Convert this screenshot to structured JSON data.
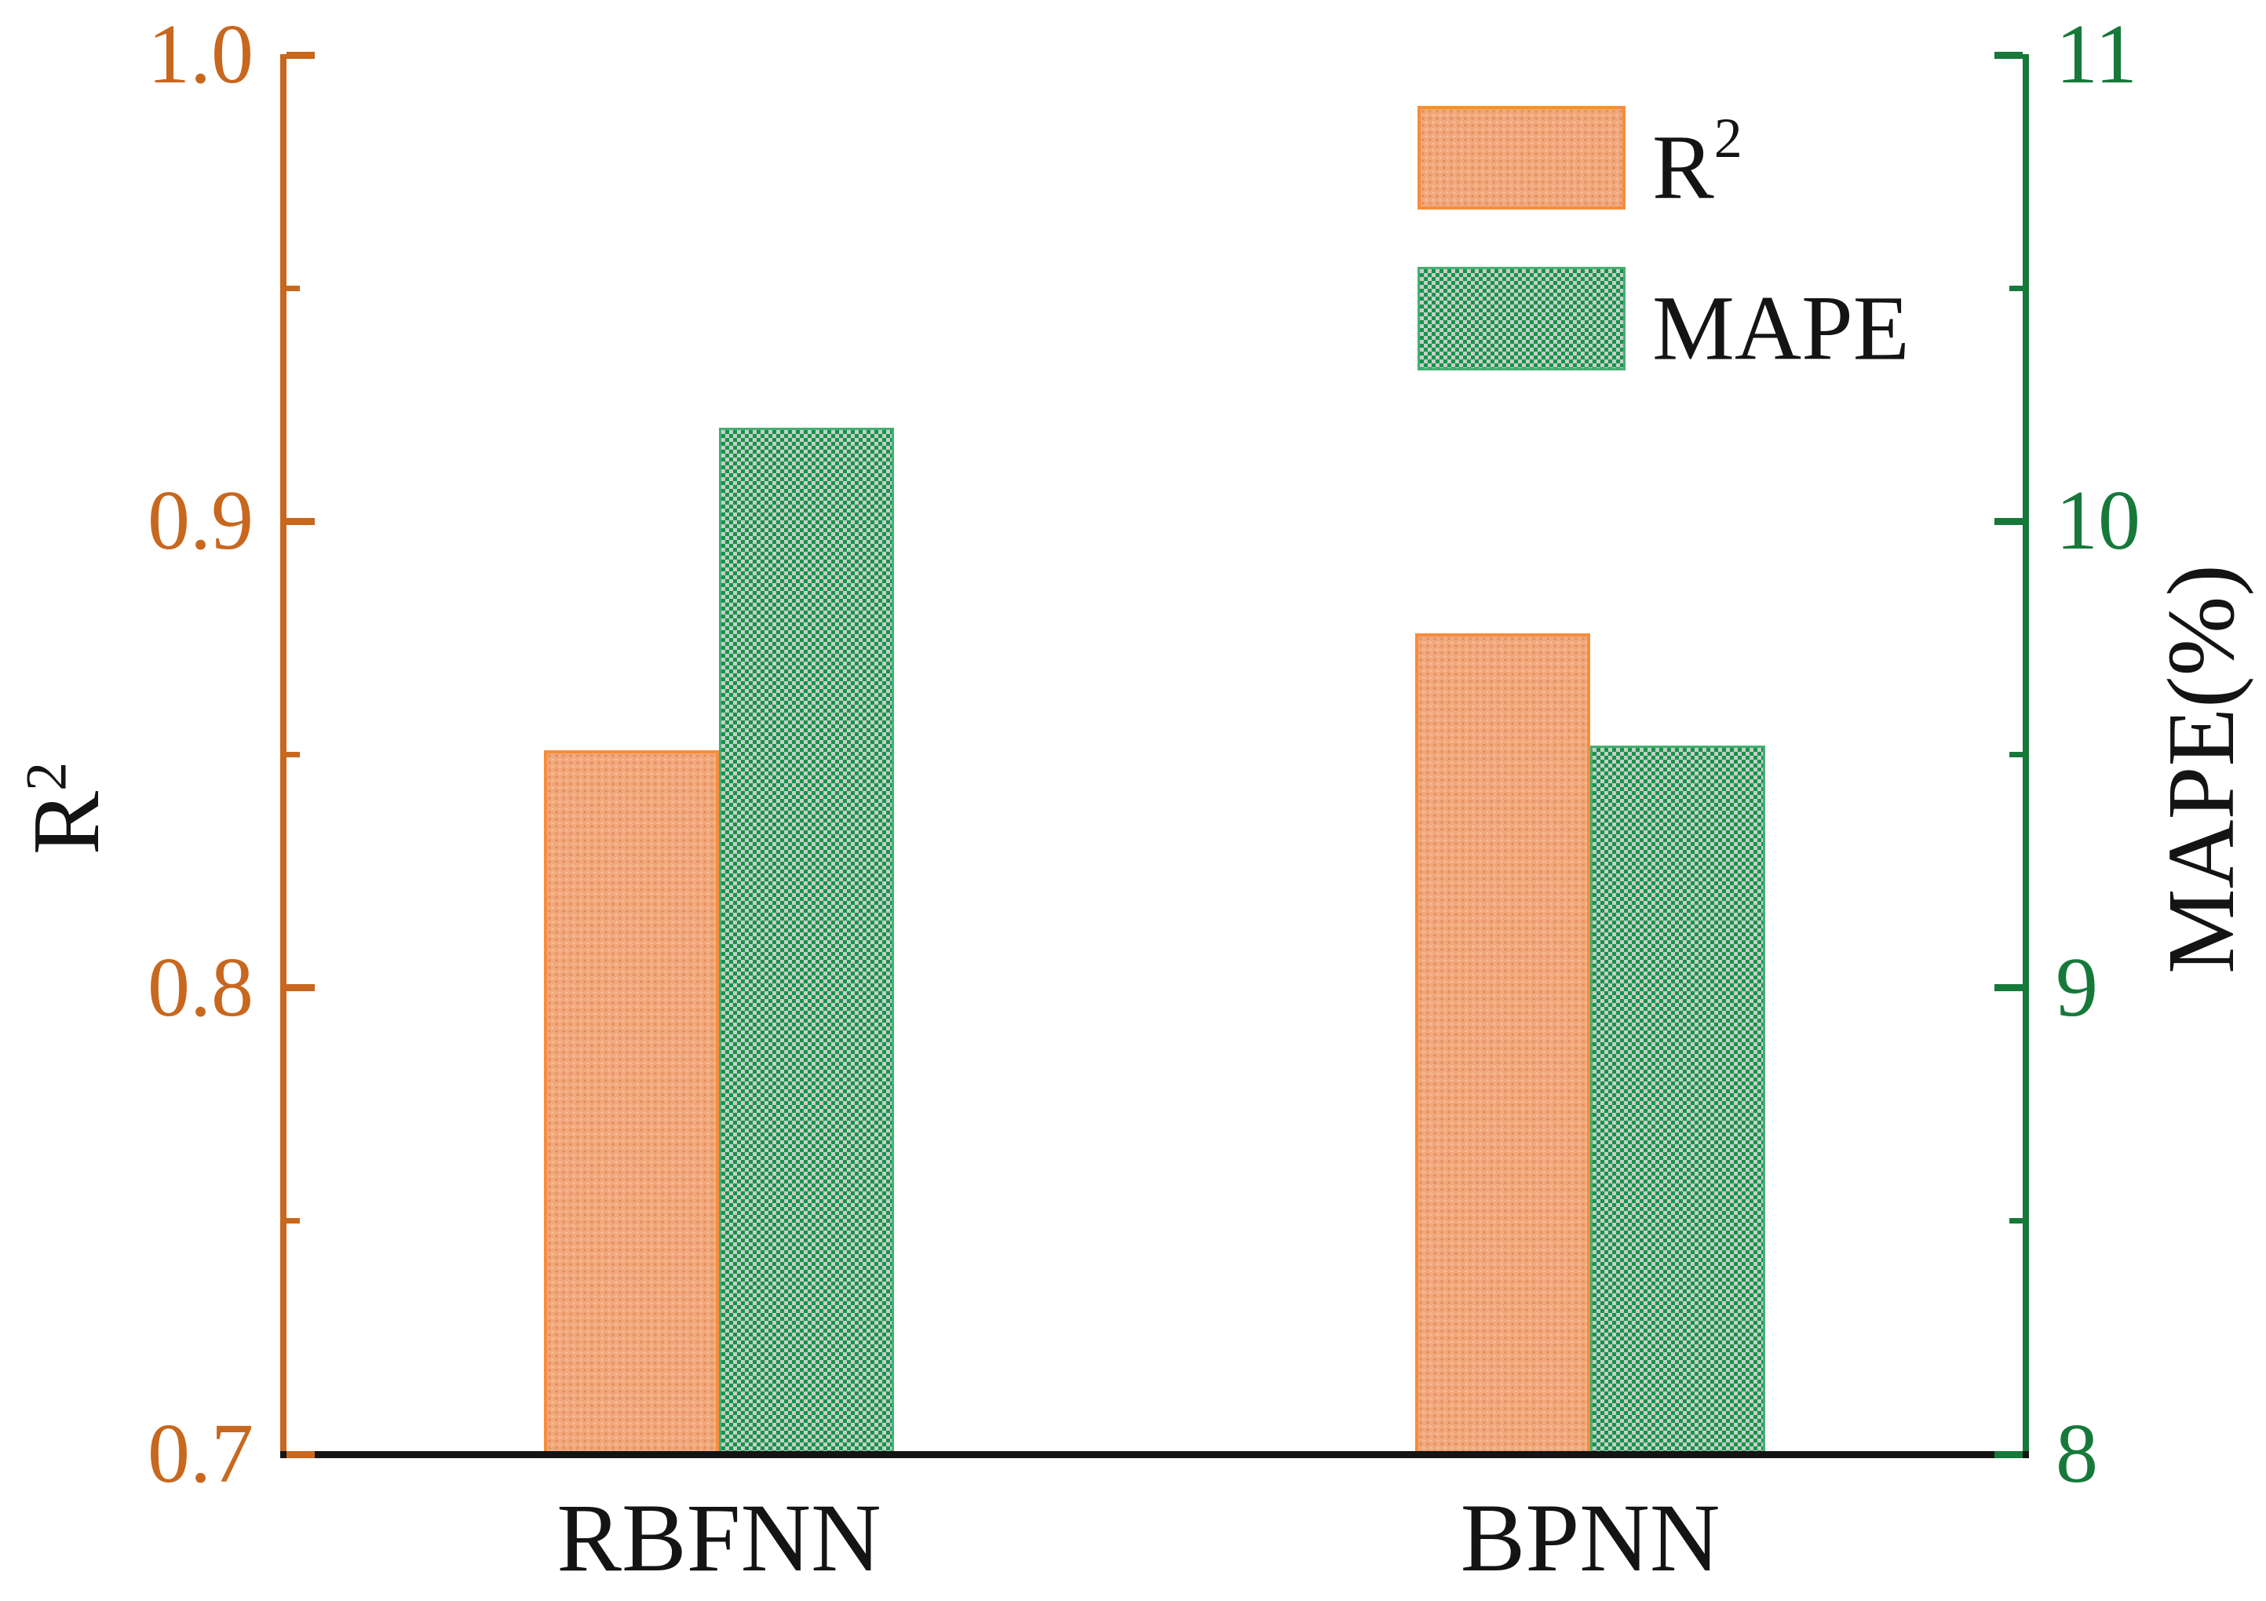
{
  "chart_data": {
    "type": "bar",
    "title": "",
    "categories": [
      "RBFNN",
      "BPNN"
    ],
    "series": [
      {
        "name": "R²",
        "axis": "left",
        "values": [
          0.851,
          0.876
        ],
        "fill_color": "#f2a87d",
        "edge_color": "#f68d3c"
      },
      {
        "name": "MAPE",
        "axis": "right",
        "values": [
          10.2,
          9.52
        ],
        "fill_color": "#3aa768",
        "edge_color": "#46ae72",
        "pattern_colors": [
          "#14944b",
          "#c7cdc7"
        ]
      }
    ],
    "left_axis": {
      "label": "R²",
      "label_base": "R",
      "label_sup": "2",
      "range": [
        0.7,
        1.0
      ],
      "ticks": [
        1.0,
        0.9,
        0.8,
        0.7
      ],
      "tick_labels": [
        "1.0",
        "0.9",
        "0.8",
        "0.7"
      ],
      "minor_ticks": [
        0.95,
        0.85,
        0.75
      ],
      "color": "#c8671e"
    },
    "right_axis": {
      "label": "MAPE(%)",
      "range": [
        8,
        11
      ],
      "ticks": [
        11,
        10,
        9,
        8
      ],
      "tick_labels": [
        "11",
        "10",
        "9",
        "8"
      ],
      "minor_ticks": [
        10.5,
        9.5,
        8.5
      ],
      "color": "#16793a"
    },
    "x_axis_color": "#141414",
    "grid": false,
    "legend_position": "upper-right"
  },
  "legend": {
    "items": [
      {
        "base": "R",
        "sup": "2",
        "series": "R²"
      },
      {
        "base": "MAPE",
        "sup": "",
        "series": "MAPE"
      }
    ]
  }
}
